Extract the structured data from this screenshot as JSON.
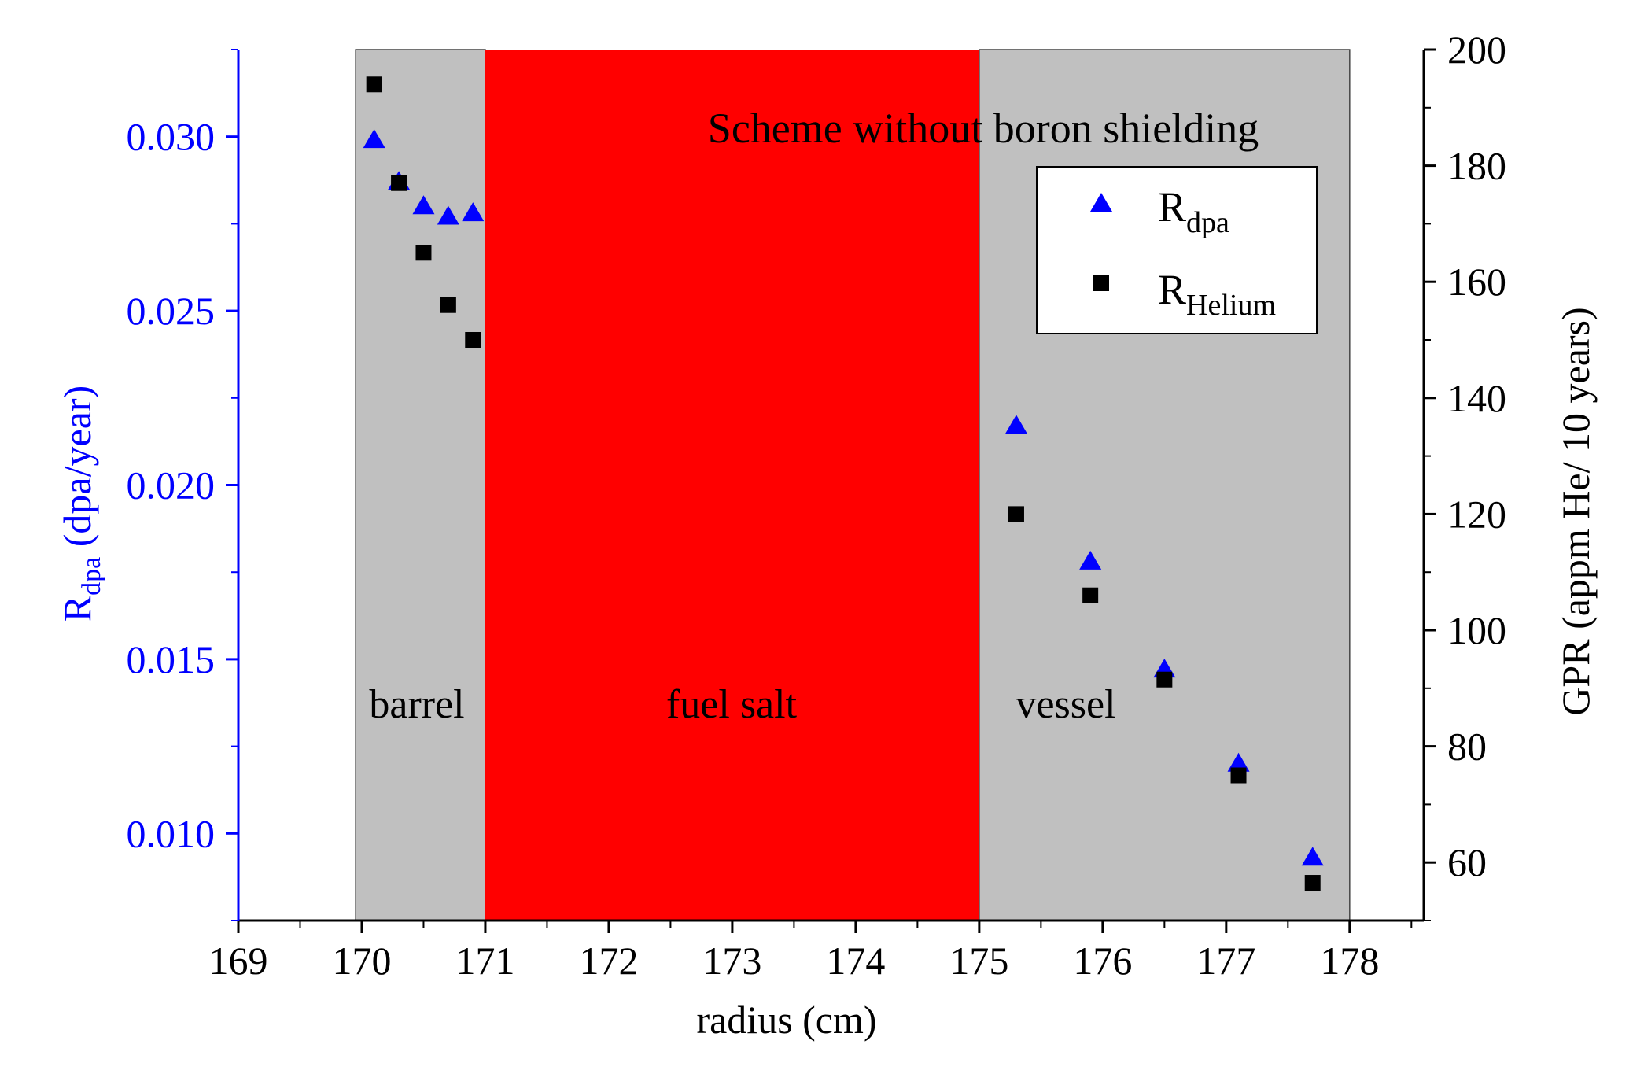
{
  "chart_data": {
    "type": "scatter",
    "title": "Scheme without boron shielding",
    "xlabel": "radius (cm)",
    "ylabel_left": {
      "main": "R",
      "sub": "dpa",
      "rest": " (dpa/year)"
    },
    "ylabel_right": "GPR (appm He/ 10 years)",
    "xlim": [
      169,
      178.6
    ],
    "ylim_left": [
      0.0075,
      0.0325
    ],
    "ylim_right": [
      50,
      200
    ],
    "x_ticks": [
      169,
      170,
      171,
      172,
      173,
      174,
      175,
      176,
      177,
      178
    ],
    "y_left_ticks": [
      0.01,
      0.015,
      0.02,
      0.025,
      0.03
    ],
    "y_left_tick_labels": [
      "0.010",
      "0.015",
      "0.020",
      "0.025",
      "0.030"
    ],
    "y_right_ticks": [
      60,
      80,
      100,
      120,
      140,
      160,
      180,
      200
    ],
    "regions": [
      {
        "label": "barrel",
        "x_start": 169.95,
        "x_end": 171,
        "color": "#c0c0c0"
      },
      {
        "label": "fuel salt",
        "x_start": 171,
        "x_end": 175,
        "color": "#ff0000"
      },
      {
        "label": "vessel",
        "x_start": 175,
        "x_end": 178,
        "color": "#c0c0c0"
      }
    ],
    "series": [
      {
        "name": "R_dpa",
        "legend_main": "R",
        "legend_sub": "dpa",
        "axis": "left",
        "marker": "triangle",
        "color": "#0000ff",
        "x": [
          170.1,
          170.3,
          170.5,
          170.7,
          170.9,
          175.3,
          175.9,
          176.5,
          177.1,
          177.7
        ],
        "y": [
          0.0299,
          0.0287,
          0.028,
          0.0277,
          0.0278,
          0.0217,
          0.0178,
          0.0147,
          0.012,
          0.0093
        ]
      },
      {
        "name": "R_Helium",
        "legend_main": "R",
        "legend_sub": "Helium",
        "axis": "right",
        "marker": "square",
        "color": "#000000",
        "x": [
          170.1,
          170.3,
          170.5,
          170.7,
          170.9,
          175.3,
          175.9,
          176.5,
          177.1,
          177.7
        ],
        "y": [
          194,
          177,
          165,
          156,
          150,
          120,
          106,
          91.5,
          75,
          56.5
        ]
      }
    ],
    "legend_position": "top-right"
  },
  "colors": {
    "left_axis": "#0000ff",
    "right_axis": "#000000"
  }
}
